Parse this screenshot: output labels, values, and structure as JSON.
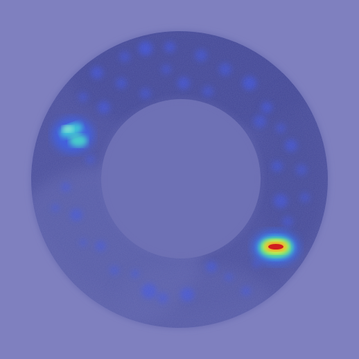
{
  "image": {
    "subject": "ring-shaped-heatmap-overlay",
    "colors": {
      "background": "#7f80bf",
      "ring_base": "#4b4f9c",
      "ring_dark": "#3d4290",
      "spot_blue": "#3a4fe0",
      "hot_cyan": "#44e6d8",
      "hot_yellow": "#f4f03a",
      "hot_red": "#d11e1e",
      "hot_green": "#5be86a"
    },
    "hotspots": [
      {
        "name": "left-hotspot",
        "intensity": 0.55
      },
      {
        "name": "right-hotspot",
        "intensity": 1.0
      }
    ]
  }
}
